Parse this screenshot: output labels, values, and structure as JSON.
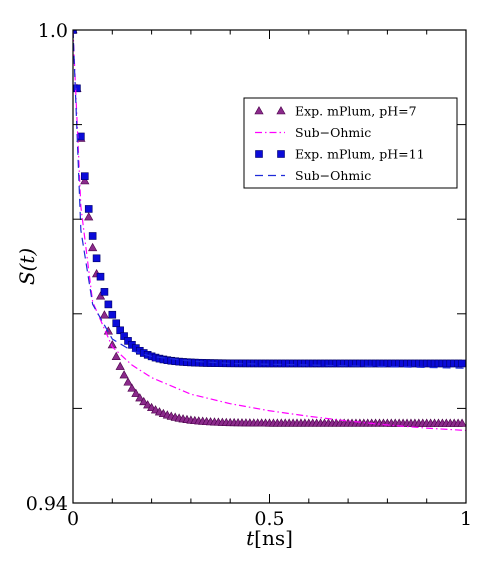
{
  "chart_data": {
    "type": "scatter",
    "xlabel_var": "t",
    "xlabel_unit": "[ns]",
    "ylabel": "S(t)",
    "xlim": [
      0,
      1
    ],
    "ylim": [
      0.94,
      1.0
    ],
    "x_ticks": [
      0,
      0.5,
      1
    ],
    "x_tick_labels": [
      "0",
      "0.5",
      "1"
    ],
    "y_ticks": [
      0.94,
      1.0
    ],
    "y_tick_labels": [
      "0.94",
      "1.0"
    ],
    "y_minor_ticks": [
      0.952,
      0.964,
      0.976,
      0.988
    ],
    "x_minor_ticks": [
      0.1,
      0.2,
      0.3,
      0.4,
      0.6,
      0.7,
      0.8,
      0.9
    ],
    "grid": false,
    "legend_position": "upper-right",
    "legend": [
      "Exp. mPlum, pH=7",
      "Sub−Ohmic",
      "Exp. mPlum, pH=11",
      "Sub−Ohmic"
    ],
    "series": [
      {
        "name": "Exp. mPlum, pH=7",
        "kind": "markers",
        "marker": "triangle",
        "color": "#8b2a8b",
        "edge": "#4a004a",
        "x0": 0.0,
        "dx": 0.01,
        "count": 100,
        "model": {
          "s0": 1.0,
          "s_inf": 0.9501,
          "tau": 0.062
        }
      },
      {
        "name": "Sub−Ohmic",
        "kind": "line",
        "style": "dashdot",
        "color": "#ff00ff",
        "x": [
          0,
          0.02,
          0.05,
          0.1,
          0.15,
          0.2,
          0.3,
          0.4,
          0.5,
          0.6,
          0.7,
          0.8,
          0.9,
          1.0
        ],
        "y": [
          1.0,
          0.9776,
          0.9655,
          0.9598,
          0.9575,
          0.9559,
          0.9538,
          0.9526,
          0.9517,
          0.951,
          0.9504,
          0.9499,
          0.9495,
          0.9492
        ]
      },
      {
        "name": "Exp. mPlum, pH=11",
        "kind": "markers",
        "marker": "square",
        "color": "#0b0bd9",
        "edge": "#000066",
        "x0": 0.0,
        "dx": 0.01,
        "count": 100,
        "model": {
          "s0": 1.0,
          "s_inf": 0.9577,
          "tau": 0.052
        }
      },
      {
        "name": "Sub−Ohmic",
        "kind": "line",
        "style": "dashed",
        "color": "#1f2bd9",
        "x": [
          0,
          0.02,
          0.05,
          0.1,
          0.15,
          0.2,
          0.3,
          0.4,
          0.5,
          0.6,
          0.7,
          0.8,
          0.9,
          1.0
        ],
        "y": [
          1.0,
          0.9746,
          0.9652,
          0.9608,
          0.9593,
          0.9586,
          0.958,
          0.9577,
          0.9576,
          0.9575,
          0.9574,
          0.9573,
          0.9572,
          0.9571
        ]
      }
    ]
  }
}
